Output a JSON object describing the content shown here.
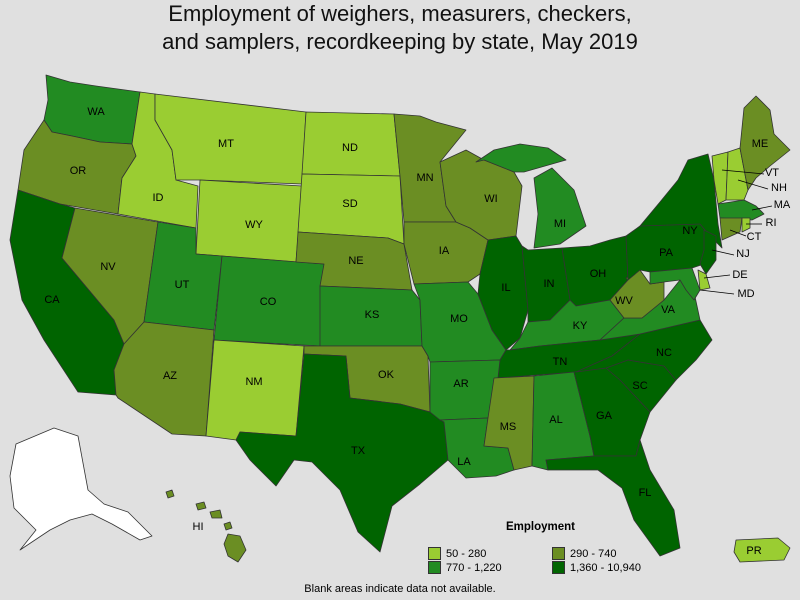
{
  "title": {
    "line1": "Employment of weighers, measurers, checkers,",
    "line2": "and samplers, recordkeeping by state, May 2019"
  },
  "colors": {
    "c1": "#9acd32",
    "c2": "#6b8e23",
    "c3": "#228b22",
    "c4": "#006400",
    "na": "#ffffff"
  },
  "legend": {
    "title": "Employment",
    "items": [
      {
        "label": "50 - 280",
        "color": "#9acd32"
      },
      {
        "label": "290 - 740",
        "color": "#6b8e23"
      },
      {
        "label": "770 - 1,220",
        "color": "#228b22"
      },
      {
        "label": "1,360 - 10,940",
        "color": "#006400"
      }
    ]
  },
  "footnote": "Blank areas indicate data not available.",
  "states": {
    "WA": "770 - 1,220",
    "OR": "290 - 740",
    "CA": "1,360 - 10,940",
    "ID": "50 - 280",
    "NV": "290 - 740",
    "MT": "50 - 280",
    "WY": "50 - 280",
    "UT": "770 - 1,220",
    "AZ": "290 - 740",
    "CO": "770 - 1,220",
    "NM": "50 - 280",
    "ND": "50 - 280",
    "SD": "50 - 280",
    "NE": "290 - 740",
    "KS": "770 - 1,220",
    "OK": "290 - 740",
    "TX": "1,360 - 10,940",
    "MN": "290 - 740",
    "IA": "290 - 740",
    "MO": "770 - 1,220",
    "AR": "770 - 1,220",
    "LA": "770 - 1,220",
    "WI": "290 - 740",
    "IL": "1,360 - 10,940",
    "MI": "770 - 1,220",
    "IN": "1,360 - 10,940",
    "OH": "1,360 - 10,940",
    "KY": "770 - 1,220",
    "TN": "1,360 - 10,940",
    "MS": "290 - 740",
    "AL": "770 - 1,220",
    "GA": "1,360 - 10,940",
    "FL": "1,360 - 10,940",
    "SC": "1,360 - 10,940",
    "NC": "1,360 - 10,940",
    "VA": "770 - 1,220",
    "WV": "290 - 740",
    "PA": "1,360 - 10,940",
    "NY": "1,360 - 10,940",
    "VT": "50 - 280",
    "NH": "50 - 280",
    "ME": "290 - 740",
    "MA": "770 - 1,220",
    "RI": "50 - 280",
    "CT": "290 - 740",
    "NJ": "1,360 - 10,940",
    "DE": "50 - 280",
    "MD": "770 - 1,220",
    "HI": "290 - 740",
    "AK": "",
    "PR": "50 - 280"
  }
}
